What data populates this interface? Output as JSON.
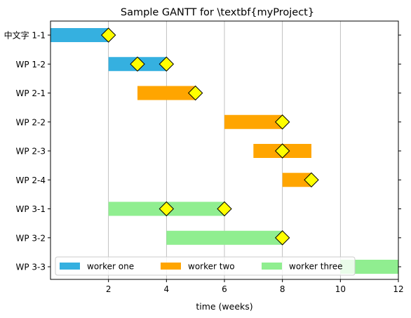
{
  "chart_data": {
    "type": "gantt",
    "title": "Sample GANTT for \\textbf{myProject}",
    "xlabel": "time (weeks)",
    "xlim": [
      0,
      12
    ],
    "xticks": [
      2,
      4,
      6,
      8,
      10,
      12
    ],
    "grid": "x",
    "legend_position": "bottom",
    "workers": [
      {
        "name": "worker one",
        "color": "#35b0e0"
      },
      {
        "name": "worker two",
        "color": "#ffa500"
      },
      {
        "name": "worker three",
        "color": "#90ee90"
      }
    ],
    "tasks": [
      {
        "label": "中文字 1-1",
        "start": 0,
        "end": 2,
        "worker": 0,
        "milestones": [
          2
        ]
      },
      {
        "label": "WP 1-2",
        "start": 2,
        "end": 4,
        "worker": 0,
        "milestones": [
          3,
          4
        ]
      },
      {
        "label": "WP 2-1",
        "start": 3,
        "end": 5,
        "worker": 1,
        "milestones": [
          5
        ]
      },
      {
        "label": "WP 2-2",
        "start": 6,
        "end": 8,
        "worker": 1,
        "milestones": [
          8
        ]
      },
      {
        "label": "WP 2-3",
        "start": 7,
        "end": 9,
        "worker": 1,
        "milestones": [
          8
        ]
      },
      {
        "label": "WP 2-4",
        "start": 8,
        "end": 9,
        "worker": 1,
        "milestones": [
          9
        ]
      },
      {
        "label": "WP 3-1",
        "start": 2,
        "end": 6,
        "worker": 2,
        "milestones": [
          4,
          6
        ]
      },
      {
        "label": "WP 3-2",
        "start": 4,
        "end": 8,
        "worker": 2,
        "milestones": [
          8
        ]
      },
      {
        "label": "WP 3-3",
        "start": 10,
        "end": 12,
        "worker": 2,
        "milestones": []
      }
    ],
    "milestone_color": "#ffff00"
  }
}
